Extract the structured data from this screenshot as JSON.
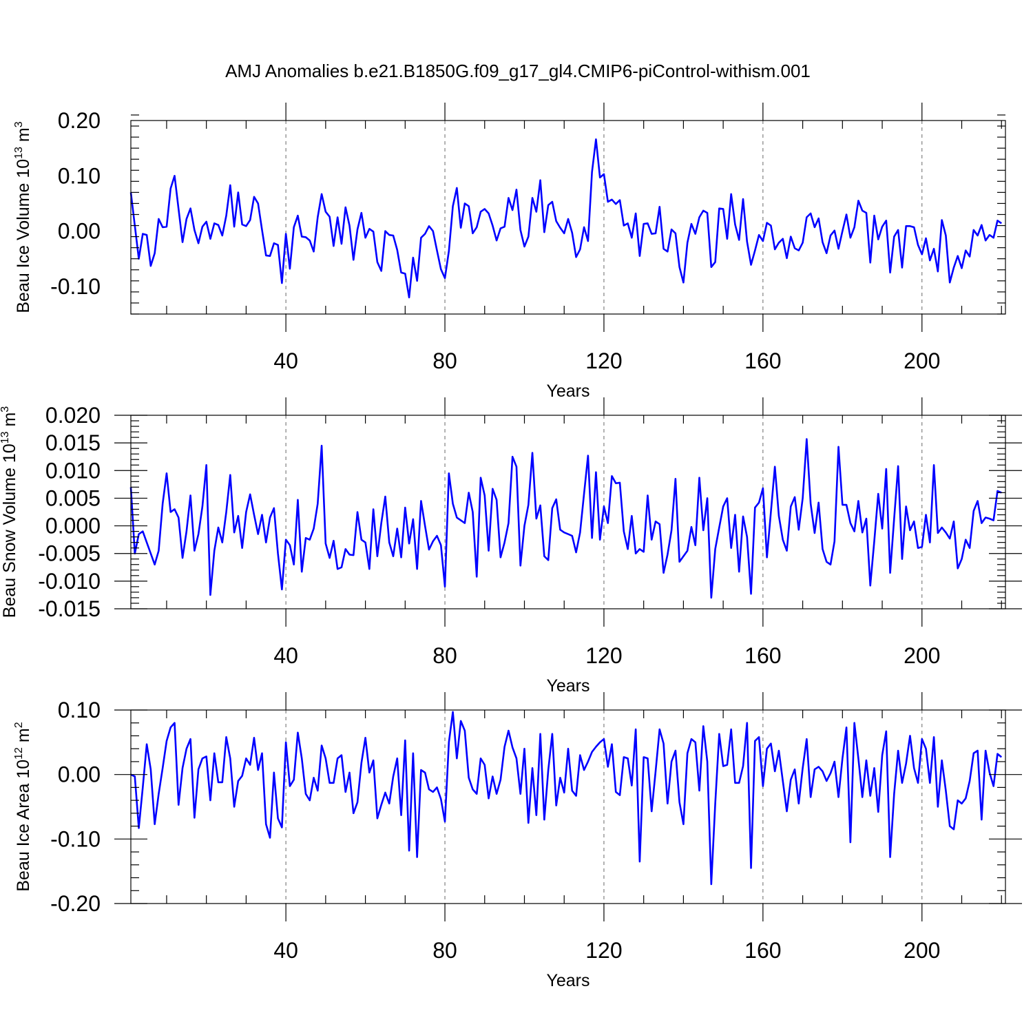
{
  "title": "AMJ Anomalies b.e21.B1850G.f09_g17_gl4.CMIP6-piControl-withism.001",
  "colors": {
    "line": "#0000ff",
    "grid": "#666666"
  },
  "chart_data": [
    {
      "type": "line",
      "ylabel": {
        "main": "Beau Ice Volume 10",
        "sup": "13",
        "unit": " m",
        "unit_sup": "3"
      },
      "xlabel": "Years",
      "x_start": 1,
      "xlim": [
        1,
        221
      ],
      "ylim": [
        -0.15,
        0.2
      ],
      "yticks": [
        -0.1,
        0.0,
        0.1,
        0.2
      ],
      "ytick_labels": [
        "-0.10",
        "0.00",
        "0.10",
        "0.20"
      ],
      "xticks": [
        40,
        80,
        120,
        160,
        200
      ],
      "xtick_labels": [
        "40",
        "80",
        "120",
        "160",
        "200"
      ],
      "grid": true,
      "series": [
        {
          "values": [
            0.07,
            0.01,
            -0.05,
            -0.005,
            -0.007,
            -0.063,
            -0.04,
            0.022,
            0.007,
            0.008,
            0.077,
            0.1,
            0.04,
            -0.02,
            0.022,
            0.041,
            0.002,
            -0.022,
            0.008,
            0.017,
            -0.014,
            0.014,
            0.011,
            -0.008,
            0.028,
            0.083,
            0.008,
            0.07,
            0.012,
            0.009,
            0.02,
            0.062,
            0.05,
            0.002,
            -0.044,
            -0.045,
            -0.022,
            -0.025,
            -0.094,
            -0.005,
            -0.068,
            0.007,
            0.028,
            -0.01,
            -0.011,
            -0.017,
            -0.037,
            0.025,
            0.067,
            0.035,
            0.026,
            -0.027,
            0.025,
            -0.023,
            0.043,
            0.01,
            -0.052,
            0.003,
            0.033,
            -0.012,
            0.004,
            -0.001,
            -0.056,
            -0.072,
            0.0,
            -0.007,
            -0.008,
            -0.034,
            -0.075,
            -0.077,
            -0.12,
            -0.048,
            -0.09,
            -0.012,
            -0.005,
            0.009,
            0.0,
            -0.035,
            -0.069,
            -0.085,
            -0.036,
            0.045,
            0.078,
            0.006,
            0.05,
            0.045,
            -0.004,
            0.007,
            0.035,
            0.04,
            0.032,
            0.01,
            -0.017,
            0.005,
            0.008,
            0.06,
            0.038,
            0.075,
            0.002,
            -0.028,
            -0.01,
            0.06,
            0.035,
            0.092,
            -0.002,
            0.047,
            0.053,
            0.018,
            0.006,
            -0.004,
            0.022,
            -0.003,
            -0.047,
            -0.033,
            0.007,
            -0.018,
            0.107,
            0.166,
            0.097,
            0.103,
            0.053,
            0.057,
            0.049,
            0.056,
            0.01,
            0.014,
            -0.012,
            0.032,
            -0.045,
            0.013,
            0.014,
            -0.005,
            -0.004,
            0.044,
            -0.032,
            -0.037,
            0.003,
            -0.004,
            -0.065,
            -0.093,
            -0.021,
            0.013,
            -0.005,
            0.025,
            0.037,
            0.033,
            -0.065,
            -0.056,
            0.041,
            0.04,
            -0.014,
            0.067,
            0.012,
            -0.016,
            0.058,
            -0.019,
            -0.061,
            -0.035,
            -0.007,
            -0.018,
            0.015,
            0.01,
            -0.033,
            -0.021,
            -0.014,
            -0.049,
            -0.01,
            -0.031,
            -0.035,
            -0.021,
            0.025,
            0.032,
            0.007,
            0.023,
            -0.02,
            -0.04,
            -0.008,
            0.001,
            -0.032,
            0.0,
            0.03,
            -0.012,
            0.007,
            0.055,
            0.037,
            0.033,
            -0.057,
            0.028,
            -0.015,
            0.008,
            0.019,
            -0.075,
            -0.01,
            0.002,
            -0.066,
            0.009,
            0.009,
            0.007,
            -0.025,
            -0.042,
            -0.013,
            -0.053,
            -0.032,
            -0.073,
            0.02,
            -0.008,
            -0.093,
            -0.066,
            -0.045,
            -0.067,
            -0.035,
            -0.046,
            0.002,
            -0.008,
            0.011,
            -0.017,
            -0.007,
            -0.012,
            0.019,
            0.014
          ]
        }
      ]
    },
    {
      "type": "line",
      "ylabel": {
        "main": "Beau Snow Volume 10",
        "sup": "13",
        "unit": " m",
        "unit_sup": "3"
      },
      "xlabel": "Years",
      "x_start": 1,
      "xlim": [
        1,
        221
      ],
      "ylim": [
        -0.015,
        0.02
      ],
      "yticks": [
        -0.015,
        -0.01,
        -0.005,
        0.0,
        0.005,
        0.01,
        0.015,
        0.02
      ],
      "ytick_labels": [
        "-0.015",
        "-0.010",
        "-0.005",
        "0.000",
        "0.005",
        "0.010",
        "0.015",
        "0.020"
      ],
      "xticks": [
        40,
        80,
        120,
        160,
        200
      ],
      "xtick_labels": [
        "40",
        "80",
        "120",
        "160",
        "200"
      ],
      "grid": true,
      "series": [
        {
          "values": [
            0.007,
            -0.005,
            -0.0015,
            -0.001,
            -0.003,
            -0.005,
            -0.007,
            -0.0045,
            0.004,
            0.0095,
            0.0025,
            0.003,
            0.0015,
            -0.0058,
            -0.001,
            0.0055,
            -0.0045,
            -0.0015,
            0.0035,
            0.011,
            -0.0125,
            -0.0045,
            -0.0003,
            -0.003,
            0.0025,
            0.0092,
            -0.0012,
            0.0018,
            -0.004,
            0.0025,
            0.0057,
            0.002,
            -0.0015,
            0.002,
            -0.003,
            0.0015,
            0.0032,
            -0.005,
            -0.0115,
            -0.0025,
            -0.0035,
            -0.007,
            0.0047,
            -0.0083,
            -0.0022,
            -0.0025,
            -0.0005,
            0.004,
            0.0145,
            -0.0032,
            -0.0058,
            -0.0027,
            -0.0078,
            -0.0075,
            -0.0042,
            -0.0052,
            -0.0053,
            0.0025,
            -0.0025,
            -0.003,
            -0.0078,
            0.003,
            -0.0055,
            0.0005,
            0.0053,
            -0.003,
            -0.0055,
            -0.0005,
            -0.0057,
            0.0033,
            -0.0032,
            0.0012,
            -0.0078,
            0.0045,
            0.0,
            -0.0043,
            -0.0028,
            -0.0018,
            -0.0035,
            -0.011,
            0.0095,
            0.004,
            0.0015,
            0.001,
            0.0005,
            0.006,
            0.0025,
            -0.0092,
            0.0087,
            0.0055,
            -0.0045,
            0.0067,
            0.0047,
            -0.0057,
            -0.003,
            0.0005,
            0.0125,
            0.0107,
            -0.0072,
            0.0,
            0.0038,
            0.0132,
            0.0013,
            0.0037,
            -0.0055,
            -0.0062,
            0.0032,
            0.0048,
            -0.0007,
            -0.0012,
            -0.0015,
            -0.0018,
            -0.0048,
            -0.0012,
            0.0058,
            0.0127,
            -0.0022,
            0.0097,
            -0.0025,
            0.0035,
            0.0005,
            0.009,
            0.0077,
            0.0078,
            -0.001,
            -0.0042,
            0.0018,
            -0.005,
            -0.0042,
            -0.0047,
            0.0055,
            -0.0025,
            0.0008,
            0.0003,
            -0.0085,
            -0.0052,
            -0.0008,
            0.0085,
            -0.0065,
            -0.0055,
            -0.0045,
            -0.0002,
            -0.0035,
            0.0087,
            -0.0008,
            0.005,
            -0.013,
            -0.0042,
            -0.0003,
            0.0035,
            0.005,
            -0.004,
            0.002,
            -0.0083,
            0.0017,
            -0.002,
            -0.0123,
            0.0033,
            0.0042,
            0.0068,
            -0.0057,
            0.0025,
            0.0107,
            0.0018,
            -0.0025,
            -0.0045,
            0.0035,
            0.0052,
            -0.0007,
            0.005,
            0.0157,
            0.004,
            -0.0013,
            0.0042,
            -0.0042,
            -0.0065,
            -0.007,
            -0.0028,
            0.0143,
            0.0038,
            0.0038,
            0.0005,
            -0.001,
            0.0045,
            -0.0012,
            0.0013,
            -0.0108,
            -0.0028,
            0.0058,
            -0.0005,
            0.0103,
            -0.0085,
            0.0013,
            0.0108,
            -0.006,
            0.0035,
            -0.0008,
            0.0008,
            -0.004,
            -0.0038,
            0.002,
            -0.003,
            0.011,
            -0.0013,
            -0.0003,
            -0.0012,
            -0.0023,
            0.0008,
            -0.0077,
            -0.006,
            -0.0025,
            -0.004,
            0.0027,
            0.0045,
            0.0005,
            0.0015,
            0.0013,
            0.001,
            0.0063,
            0.006
          ]
        }
      ]
    },
    {
      "type": "line",
      "ylabel": {
        "main": "Beau Ice Area 10",
        "sup": "12",
        "unit": " m",
        "unit_sup": "2"
      },
      "xlabel": "Years",
      "x_start": 1,
      "xlim": [
        1,
        221
      ],
      "ylim": [
        -0.2,
        0.1
      ],
      "yticks": [
        -0.2,
        -0.1,
        0.0,
        0.1
      ],
      "ytick_labels": [
        "-0.20",
        "-0.10",
        "0.00",
        "0.10"
      ],
      "xticks": [
        40,
        80,
        120,
        160,
        200
      ],
      "xtick_labels": [
        "40",
        "80",
        "120",
        "160",
        "200"
      ],
      "grid": true,
      "series": [
        {
          "values": [
            0.0,
            -0.003,
            -0.083,
            -0.02,
            0.047,
            0.008,
            -0.077,
            -0.03,
            0.01,
            0.052,
            0.073,
            0.08,
            -0.047,
            0.01,
            0.04,
            0.055,
            -0.067,
            0.008,
            0.025,
            0.028,
            -0.04,
            0.033,
            -0.012,
            -0.012,
            0.058,
            0.025,
            -0.05,
            -0.01,
            -0.002,
            0.025,
            0.015,
            0.057,
            0.007,
            0.033,
            -0.077,
            -0.098,
            0.003,
            -0.068,
            -0.082,
            0.05,
            -0.018,
            -0.008,
            0.065,
            0.025,
            -0.03,
            -0.04,
            -0.005,
            -0.025,
            0.045,
            0.025,
            -0.013,
            -0.013,
            0.025,
            0.03,
            -0.027,
            0.003,
            -0.06,
            -0.043,
            0.018,
            0.057,
            0.003,
            0.022,
            -0.068,
            -0.047,
            -0.028,
            -0.045,
            -0.003,
            0.025,
            -0.063,
            0.053,
            -0.118,
            0.033,
            -0.128,
            0.007,
            0.003,
            -0.023,
            -0.027,
            -0.02,
            -0.038,
            -0.073,
            0.05,
            0.097,
            0.025,
            0.083,
            0.068,
            -0.005,
            -0.023,
            -0.03,
            0.025,
            0.015,
            -0.037,
            -0.003,
            -0.03,
            -0.008,
            0.043,
            0.068,
            0.042,
            0.025,
            -0.03,
            0.04,
            -0.075,
            0.01,
            -0.063,
            0.063,
            -0.07,
            0.007,
            0.063,
            -0.048,
            -0.005,
            -0.028,
            0.04,
            -0.025,
            -0.033,
            0.03,
            0.007,
            0.02,
            0.035,
            0.043,
            0.05,
            0.055,
            0.012,
            0.047,
            -0.027,
            -0.032,
            0.027,
            0.025,
            -0.017,
            0.07,
            -0.135,
            0.027,
            0.025,
            -0.057,
            0.005,
            0.07,
            0.048,
            -0.045,
            0.02,
            0.037,
            -0.043,
            -0.077,
            0.033,
            0.055,
            0.05,
            -0.025,
            0.075,
            0.02,
            -0.17,
            -0.045,
            0.063,
            0.013,
            0.015,
            0.07,
            -0.013,
            -0.013,
            0.013,
            0.08,
            -0.145,
            0.052,
            0.058,
            -0.018,
            0.04,
            0.048,
            0.005,
            0.037,
            -0.01,
            -0.057,
            -0.008,
            0.008,
            -0.045,
            0.01,
            0.055,
            -0.035,
            0.008,
            0.012,
            0.005,
            -0.01,
            0.002,
            0.02,
            -0.035,
            0.025,
            0.073,
            -0.105,
            0.08,
            0.025,
            -0.035,
            0.022,
            -0.033,
            0.01,
            -0.058,
            0.03,
            0.067,
            -0.128,
            -0.03,
            0.037,
            -0.013,
            0.017,
            0.06,
            0.01,
            -0.013,
            0.055,
            0.04,
            -0.013,
            0.058,
            -0.05,
            0.022,
            -0.025,
            -0.08,
            -0.085,
            -0.04,
            -0.045,
            -0.037,
            -0.01,
            0.033,
            0.037,
            -0.07,
            0.037,
            0.003,
            -0.018,
            0.032,
            0.027
          ]
        }
      ]
    }
  ]
}
